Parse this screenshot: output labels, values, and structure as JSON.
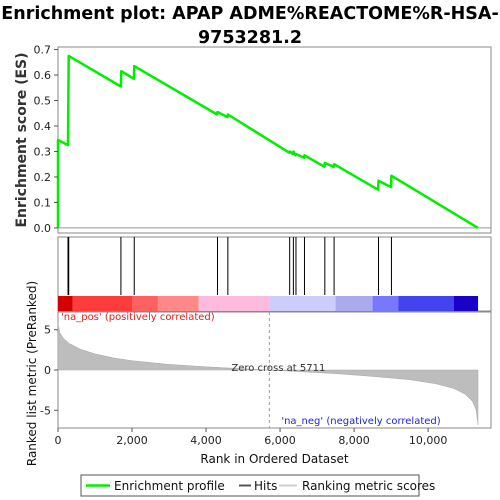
{
  "title_lines": [
    "Enrichment plot: APAP ADME%REACTOME%R-HSA-",
    "9753281.2"
  ],
  "chart_data": {
    "type": "line",
    "title": "Enrichment plot: APAP ADME%REACTOME%R-HSA-9753281.2",
    "xlabel": "Rank in Ordered Dataset",
    "ylabel_top": "Enrichment score (ES)",
    "ylabel_bottom": "Ranked list metric (PreRanked)",
    "xlim": [
      0,
      11700
    ],
    "x_ticks": [
      0,
      2000,
      4000,
      6000,
      8000,
      10000
    ],
    "x_tick_labels": [
      "0",
      "2,000",
      "4,000",
      "6,000",
      "8,000",
      "10,000"
    ],
    "es_ylim": [
      -0.02,
      0.71
    ],
    "es_ticks": [
      0.0,
      0.1,
      0.2,
      0.3,
      0.4,
      0.5,
      0.6,
      0.7
    ],
    "es_tick_labels": [
      "0.0",
      "0.1",
      "0.2",
      "0.3",
      "0.4",
      "0.5",
      "0.6",
      "0.7"
    ],
    "metric_ylim": [
      -7.2,
      7.2
    ],
    "metric_ticks": [
      5,
      0,
      -5
    ],
    "metric_tick_labels": [
      "5",
      "0",
      "-5"
    ],
    "dataset_size": 11350,
    "enrichment_profile": {
      "x": [
        0,
        0,
        270,
        290,
        1700,
        1710,
        2050,
        2060,
        4300,
        4310,
        4580,
        4590,
        6250,
        6260,
        6350,
        6360,
        6420,
        6430,
        6650,
        6660,
        7200,
        7210,
        7450,
        7460,
        8650,
        8660,
        9000,
        9010,
        11350
      ],
      "y": [
        0.0,
        0.345,
        0.325,
        0.675,
        0.555,
        0.615,
        0.585,
        0.635,
        0.445,
        0.455,
        0.435,
        0.445,
        0.295,
        0.3,
        0.29,
        0.3,
        0.285,
        0.29,
        0.275,
        0.285,
        0.24,
        0.255,
        0.24,
        0.25,
        0.15,
        0.185,
        0.16,
        0.205,
        0.0
      ]
    },
    "hits": [
      270,
      290,
      1700,
      2060,
      4310,
      4590,
      6260,
      6360,
      6430,
      6660,
      7210,
      7460,
      8660,
      9010
    ],
    "metric_curve": {
      "x": [
        0,
        50,
        150,
        300,
        600,
        1000,
        1500,
        2000,
        3000,
        4000,
        5000,
        5711,
        6500,
        7500,
        8500,
        9500,
        10200,
        10700,
        11000,
        11200,
        11300,
        11350
      ],
      "y": [
        5.8,
        4.6,
        3.9,
        3.3,
        2.6,
        2.0,
        1.5,
        1.15,
        0.7,
        0.4,
        0.15,
        0.0,
        -0.2,
        -0.45,
        -0.8,
        -1.2,
        -1.7,
        -2.3,
        -3.0,
        -3.9,
        -5.0,
        -6.8
      ]
    },
    "zero_cross": 5711,
    "zero_cross_label": "Zero cross at 5711",
    "pos_label": "'na_pos' (positively correlated)",
    "neg_label": "'na_neg' (negatively correlated)",
    "heatmap_colors": [
      "#d40000",
      "#ff3c3c",
      "#ff6060",
      "#ff8888",
      "#ffbbdd",
      "#ffccee",
      "#ccccff",
      "#aaaaee",
      "#7777ff",
      "#4444ee",
      "#1a00c8"
    ],
    "heatmap_breaks": [
      0,
      400,
      2000,
      2700,
      3800,
      5711,
      5712,
      7500,
      8500,
      9200,
      10700,
      11350
    ],
    "legend": [
      "Enrichment profile",
      "Hits",
      "Ranking metric scores"
    ],
    "colors": {
      "profile": "#00ee00",
      "hits": "#000000",
      "metric_fill": "#bdbdbd",
      "pos_text": "#dd2222",
      "neg_text": "#2222dd"
    }
  }
}
